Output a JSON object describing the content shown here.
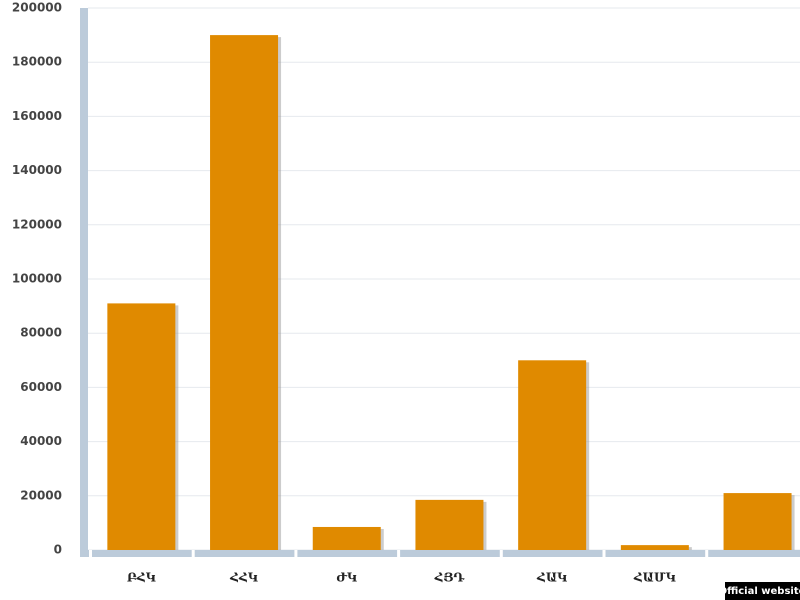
{
  "chart_data": {
    "type": "bar",
    "categories": [
      "ԲՀԿ",
      "ՀՀԿ",
      "ԺԿ",
      "ՀՅԴ",
      "ՀԱԿ",
      "ՀԱՄԿ",
      null
    ],
    "values": [
      91000,
      190000,
      8500,
      18500,
      70000,
      1800,
      21000
    ],
    "color": "#e08a00",
    "ylim": [
      0,
      200000
    ],
    "yticks": [
      0,
      20000,
      40000,
      60000,
      80000,
      100000,
      120000,
      140000,
      160000,
      180000,
      200000
    ],
    "grid": true,
    "annotation": "Official website"
  }
}
